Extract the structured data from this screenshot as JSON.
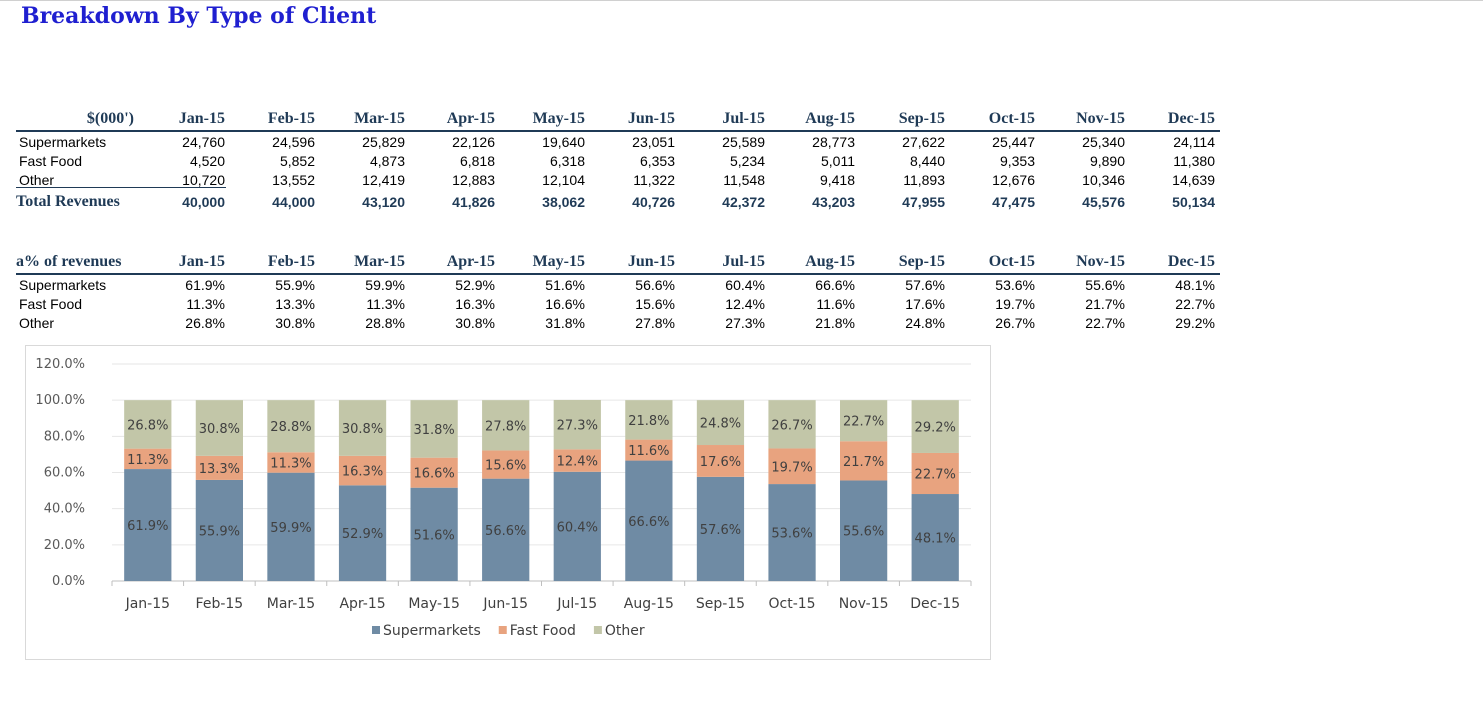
{
  "title": "Breakdown By Type of Client",
  "revenue_table": {
    "corner": "$(000')",
    "months": [
      "Jan-15",
      "Feb-15",
      "Mar-15",
      "Apr-15",
      "May-15",
      "Jun-15",
      "Jul-15",
      "Aug-15",
      "Sep-15",
      "Oct-15",
      "Nov-15",
      "Dec-15"
    ],
    "rows": [
      {
        "label": "Supermarkets",
        "values": [
          "24,760",
          "24,596",
          "25,829",
          "22,126",
          "19,640",
          "23,051",
          "25,589",
          "28,773",
          "27,622",
          "25,447",
          "25,340",
          "24,114"
        ]
      },
      {
        "label": "Fast Food",
        "values": [
          "4,520",
          "5,852",
          "4,873",
          "6,818",
          "6,318",
          "6,353",
          "5,234",
          "5,011",
          "8,440",
          "9,353",
          "9,890",
          "11,380"
        ]
      },
      {
        "label": "Other",
        "values": [
          "10,720",
          "13,552",
          "12,419",
          "12,883",
          "12,104",
          "11,322",
          "11,548",
          "9,418",
          "11,893",
          "12,676",
          "10,346",
          "14,639"
        ]
      }
    ],
    "total": {
      "label": "Total Revenues",
      "values": [
        "40,000",
        "44,000",
        "43,120",
        "41,826",
        "38,062",
        "40,726",
        "42,372",
        "43,203",
        "47,955",
        "47,475",
        "45,576",
        "50,134"
      ]
    }
  },
  "pct_table": {
    "corner": "a% of revenues",
    "months": [
      "Jan-15",
      "Feb-15",
      "Mar-15",
      "Apr-15",
      "May-15",
      "Jun-15",
      "Jul-15",
      "Aug-15",
      "Sep-15",
      "Oct-15",
      "Nov-15",
      "Dec-15"
    ],
    "rows": [
      {
        "label": "Supermarkets",
        "values": [
          "61.9%",
          "55.9%",
          "59.9%",
          "52.9%",
          "51.6%",
          "56.6%",
          "60.4%",
          "66.6%",
          "57.6%",
          "53.6%",
          "55.6%",
          "48.1%"
        ]
      },
      {
        "label": "Fast Food",
        "values": [
          "11.3%",
          "13.3%",
          "11.3%",
          "16.3%",
          "16.6%",
          "15.6%",
          "12.4%",
          "11.6%",
          "17.6%",
          "19.7%",
          "21.7%",
          "22.7%"
        ]
      },
      {
        "label": "Other",
        "values": [
          "26.8%",
          "30.8%",
          "28.8%",
          "30.8%",
          "31.8%",
          "27.8%",
          "27.3%",
          "21.8%",
          "24.8%",
          "26.7%",
          "22.7%",
          "29.2%"
        ]
      }
    ]
  },
  "chart_data": {
    "type": "bar",
    "stacked": true,
    "categories": [
      "Jan-15",
      "Feb-15",
      "Mar-15",
      "Apr-15",
      "May-15",
      "Jun-15",
      "Jul-15",
      "Aug-15",
      "Sep-15",
      "Oct-15",
      "Nov-15",
      "Dec-15"
    ],
    "series": [
      {
        "name": "Supermarkets",
        "color": "#6f8ba4",
        "values": [
          61.9,
          55.9,
          59.9,
          52.9,
          51.6,
          56.6,
          60.4,
          66.6,
          57.6,
          53.6,
          55.6,
          48.1
        ]
      },
      {
        "name": "Fast Food",
        "color": "#e8a37f",
        "values": [
          11.3,
          13.3,
          11.3,
          16.3,
          16.6,
          15.6,
          12.4,
          11.6,
          17.6,
          19.7,
          21.7,
          22.7
        ]
      },
      {
        "name": "Other",
        "color": "#c2c6a8",
        "values": [
          26.8,
          30.8,
          28.8,
          30.8,
          31.8,
          27.8,
          27.3,
          21.8,
          24.8,
          26.7,
          22.7,
          29.2
        ]
      }
    ],
    "yticks": [
      "0.0%",
      "20.0%",
      "40.0%",
      "60.0%",
      "80.0%",
      "100.0%",
      "120.0%"
    ],
    "ylim": [
      0,
      120
    ],
    "legend_position": "bottom",
    "grid": true
  }
}
